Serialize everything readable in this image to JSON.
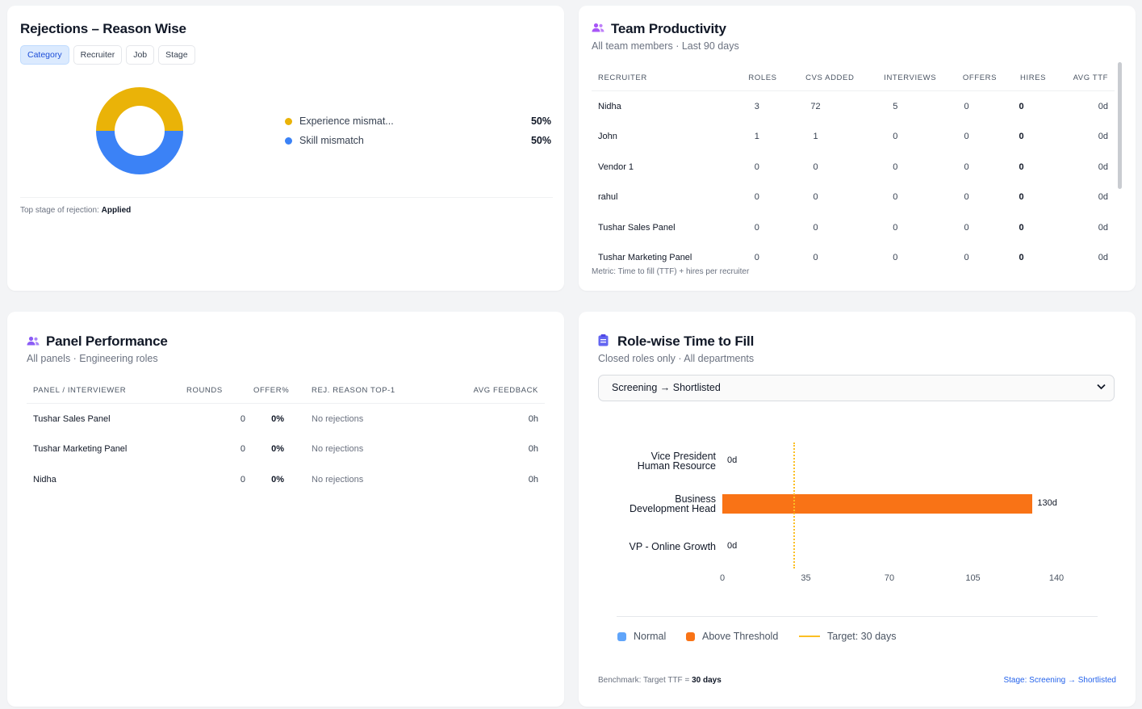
{
  "rejections": {
    "title": "Rejections – Reason Wise",
    "tabs": [
      "Category",
      "Recruiter",
      "Job",
      "Stage"
    ],
    "legend": [
      {
        "label": "Experience mismat...",
        "pct": "50%",
        "color": "#eab308"
      },
      {
        "label": "Skill mismatch",
        "pct": "50%",
        "color": "#3b82f6"
      }
    ],
    "donut": [
      0.5,
      0.5
    ],
    "footnote_label": "Top stage of rejection:",
    "footnote_value": "Applied"
  },
  "team": {
    "title": "Team Productivity",
    "subtitle": "All team members · Last 90 days",
    "columns": [
      "RECRUITER",
      "ROLES",
      "CVS ADDED",
      "INTERVIEWS",
      "OFFERS",
      "HIRES",
      "AVG TTF"
    ],
    "rows": [
      [
        "Nidha",
        "3",
        "72",
        "5",
        "0",
        "0",
        "0d"
      ],
      [
        "John",
        "1",
        "1",
        "0",
        "0",
        "0",
        "0d"
      ],
      [
        "Vendor 1",
        "0",
        "0",
        "0",
        "0",
        "0",
        "0d"
      ],
      [
        "rahul",
        "0",
        "0",
        "0",
        "0",
        "0",
        "0d"
      ],
      [
        "Tushar Sales Panel",
        "0",
        "0",
        "0",
        "0",
        "0",
        "0d"
      ],
      [
        "Tushar Marketing Panel",
        "0",
        "0",
        "0",
        "0",
        "0",
        "0d"
      ]
    ],
    "footnote": "Metric: Time to fill (TTF) + hires per recruiter"
  },
  "panel": {
    "title": "Panel Performance",
    "subtitle": "All panels · Engineering roles",
    "columns": [
      "PANEL / INTERVIEWER",
      "ROUNDS",
      "OFFER%",
      "REJ. REASON TOP-1",
      "AVG FEEDBACK"
    ],
    "rows": [
      [
        "Tushar Sales Panel",
        "0",
        "0%",
        "No rejections",
        "0h"
      ],
      [
        "Tushar Marketing Panel",
        "0",
        "0%",
        "No rejections",
        "0h"
      ],
      [
        "Nidha",
        "0",
        "0%",
        "No rejections",
        "0h"
      ]
    ]
  },
  "role": {
    "title": "Role-wise Time to Fill",
    "subtitle": "Closed roles only · All departments",
    "select_value": "Screening → Shortlisted",
    "legend": {
      "normal": "Normal",
      "above": "Above Threshold",
      "target": "Target: 30 days"
    },
    "benchmark_label": "Benchmark: Target TTF =",
    "benchmark_value": "30 days",
    "stage_link": "Stage: Screening → Shortlisted",
    "colors": {
      "normal": "#60a5fa",
      "above": "#f97316",
      "target": "#fbbf24"
    }
  },
  "chart_data": {
    "type": "bar",
    "orientation": "horizontal",
    "categories": [
      [
        "Vice President",
        "Human Resource"
      ],
      [
        "Business",
        "Development Head"
      ],
      [
        "VP - Online Growth"
      ]
    ],
    "values": [
      0,
      130,
      0
    ],
    "value_labels": [
      "0d",
      "130d",
      "0d"
    ],
    "status": [
      "normal",
      "above",
      "normal"
    ],
    "xticks": [
      0,
      35,
      70,
      105,
      140
    ],
    "xlim": [
      0,
      140
    ],
    "target_line": 30
  }
}
